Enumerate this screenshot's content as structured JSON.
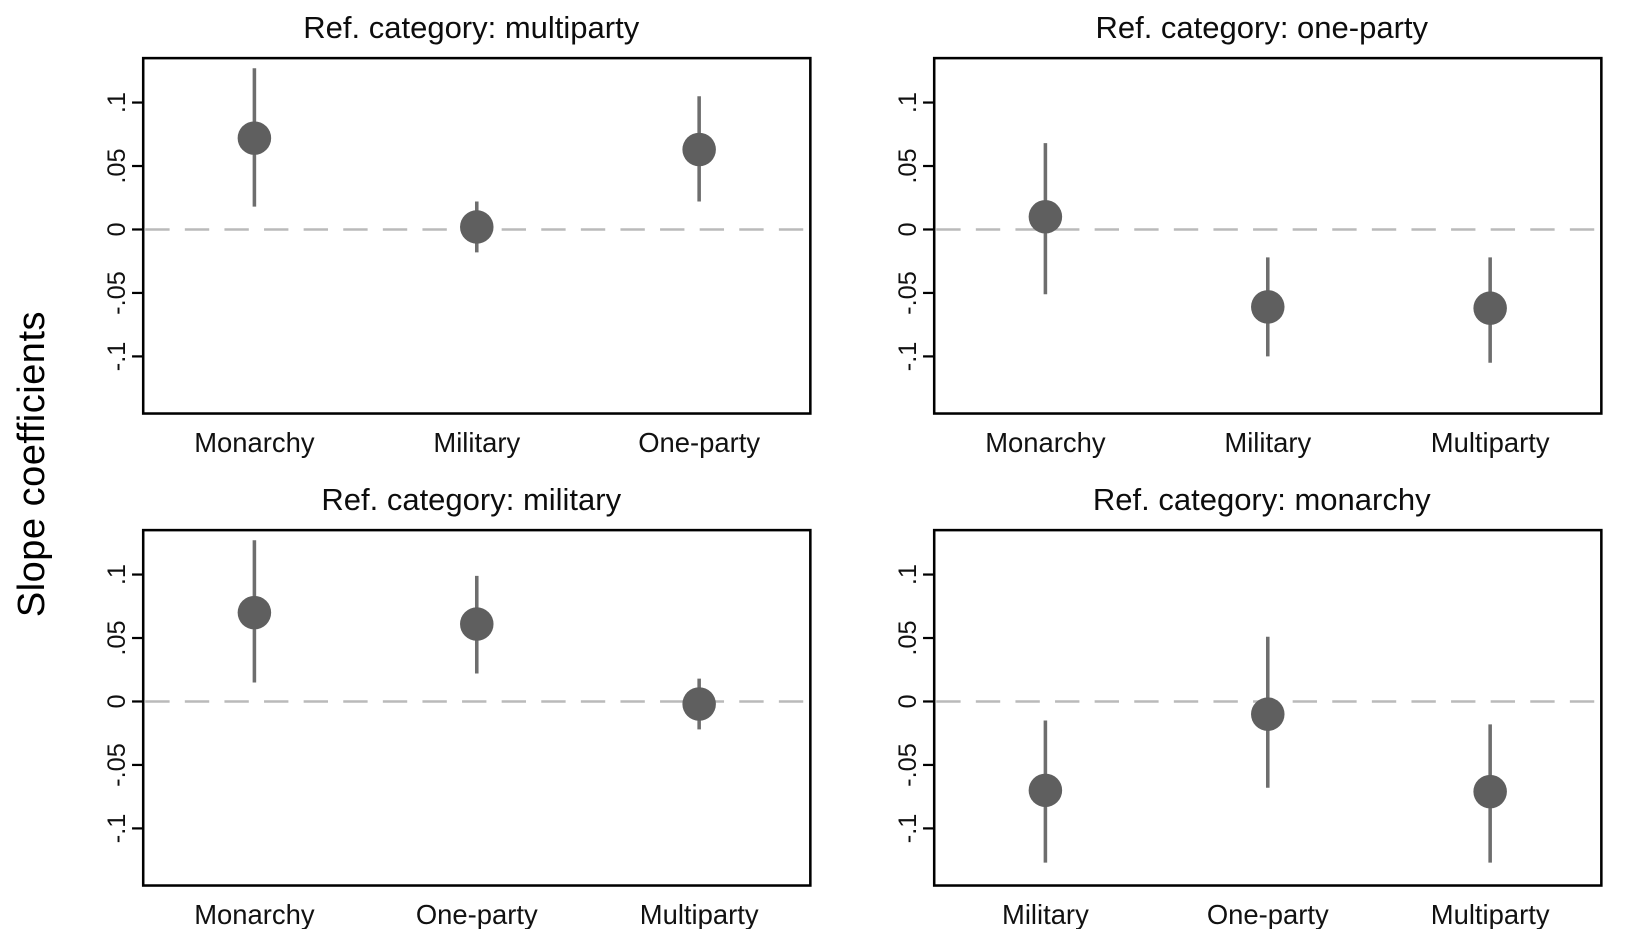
{
  "figure": {
    "ylabel": "Slope coefficients",
    "background": "#ffffff",
    "frame_color": "#000000",
    "marker_color": "#5f5f5f",
    "ci_color": "#6e6e6e",
    "zero_line_color": "#bababa",
    "tick_label_color": "#111111"
  },
  "chart_data": [
    {
      "type": "scatter",
      "subtype": "coefficient-plot-with-ci",
      "title": "Ref. category: multiparty",
      "categories": [
        "Monarchy",
        "Military",
        "One-party"
      ],
      "values": [
        0.072,
        0.002,
        0.063
      ],
      "ci_low": [
        0.018,
        -0.018,
        0.022
      ],
      "ci_high": [
        0.127,
        0.022,
        0.105
      ],
      "yticks": {
        "values": [
          0.1,
          0.05,
          0,
          -0.05,
          -0.1
        ],
        "labels": [
          ".1",
          ".05",
          "0",
          "-.05",
          "-.1"
        ]
      },
      "ylim": [
        -0.145,
        0.135
      ],
      "zero_line": true,
      "grid": false,
      "legend": "none",
      "xlabel": "",
      "ylabel": ""
    },
    {
      "type": "scatter",
      "subtype": "coefficient-plot-with-ci",
      "title": "Ref. category: one-party",
      "categories": [
        "Monarchy",
        "Military",
        "Multiparty"
      ],
      "values": [
        0.01,
        -0.061,
        -0.062
      ],
      "ci_low": [
        -0.051,
        -0.1,
        -0.105
      ],
      "ci_high": [
        0.068,
        -0.022,
        -0.022
      ],
      "yticks": {
        "values": [
          0.1,
          0.05,
          0,
          -0.05,
          -0.1
        ],
        "labels": [
          ".1",
          ".05",
          "0",
          "-.05",
          "-.1"
        ]
      },
      "ylim": [
        -0.145,
        0.135
      ],
      "zero_line": true,
      "grid": false,
      "legend": "none",
      "xlabel": "",
      "ylabel": ""
    },
    {
      "type": "scatter",
      "subtype": "coefficient-plot-with-ci",
      "title": "Ref. category: military",
      "categories": [
        "Monarchy",
        "One-party",
        "Multiparty"
      ],
      "values": [
        0.07,
        0.061,
        -0.002
      ],
      "ci_low": [
        0.015,
        0.022,
        -0.022
      ],
      "ci_high": [
        0.127,
        0.099,
        0.018
      ],
      "yticks": {
        "values": [
          0.1,
          0.05,
          0,
          -0.05,
          -0.1
        ],
        "labels": [
          ".1",
          ".05",
          "0",
          "-.05",
          "-.1"
        ]
      },
      "ylim": [
        -0.145,
        0.135
      ],
      "zero_line": true,
      "grid": false,
      "legend": "none",
      "xlabel": "",
      "ylabel": ""
    },
    {
      "type": "scatter",
      "subtype": "coefficient-plot-with-ci",
      "title": "Ref. category: monarchy",
      "categories": [
        "Military",
        "One-party",
        "Multiparty"
      ],
      "values": [
        -0.07,
        -0.01,
        -0.071
      ],
      "ci_low": [
        -0.127,
        -0.068,
        -0.127
      ],
      "ci_high": [
        -0.015,
        0.051,
        -0.018
      ],
      "yticks": {
        "values": [
          0.1,
          0.05,
          0,
          -0.05,
          -0.1
        ],
        "labels": [
          ".1",
          ".05",
          "0",
          "-.05",
          "-.1"
        ]
      },
      "ylim": [
        -0.145,
        0.135
      ],
      "zero_line": true,
      "grid": false,
      "legend": "none",
      "xlabel": "",
      "ylabel": ""
    }
  ]
}
